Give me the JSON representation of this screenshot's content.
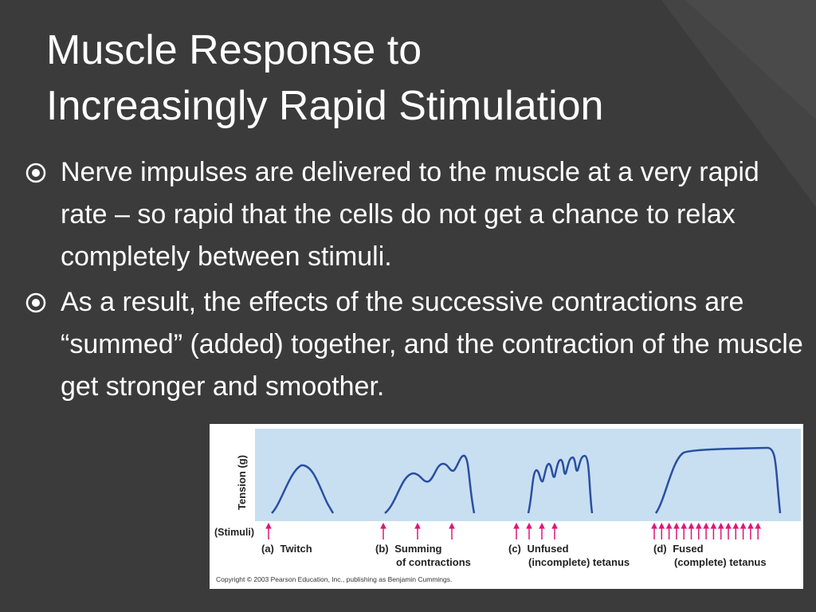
{
  "slide": {
    "title_line1": "Muscle Response to",
    "title_line2": "Increasingly Rapid Stimulation",
    "bullets": [
      "Nerve impulses are delivered to the muscle at a very rapid rate – so rapid that the cells do not get a chance to relax completely between stimuli.",
      "As a result, the effects of the successive contractions are “summed” (added) together, and the contraction of the muscle get stronger and smoother."
    ],
    "bullet_icon": "circled-dot-icon"
  },
  "figure": {
    "y_axis_label": "Tension (g)",
    "stimuli_label": "(Stimuli)",
    "panels": [
      {
        "letter": "(a)",
        "line1": "Twitch",
        "line2": "",
        "stimuli_count": 1
      },
      {
        "letter": "(b)",
        "line1": "Summing",
        "line2": "of contractions",
        "stimuli_count": 3
      },
      {
        "letter": "(c)",
        "line1": "Unfused",
        "line2": "(incomplete) tetanus",
        "stimuli_count": 4
      },
      {
        "letter": "(d)",
        "line1": "Fused",
        "line2": "(complete) tetanus",
        "stimuli_count": 15
      }
    ],
    "copyright": "Copyright © 2003 Pearson Education, Inc., publishing as Benjamin Cummings.",
    "colors": {
      "plot_bg": "#c8dff2",
      "curve": "#2a4fa0",
      "arrow": "#e0157a"
    }
  }
}
